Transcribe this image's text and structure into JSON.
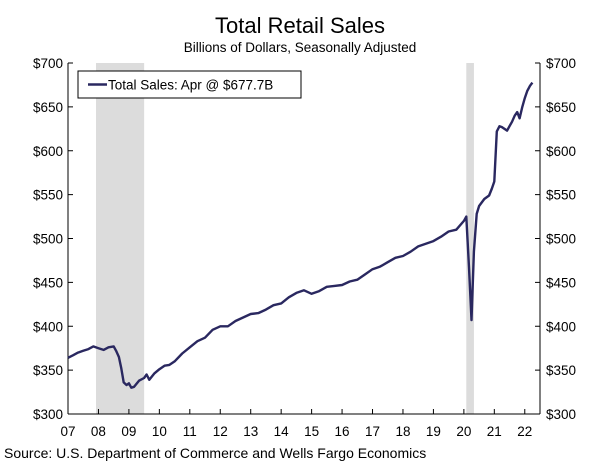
{
  "chart_data": {
    "type": "line",
    "title": "Total Retail Sales",
    "subtitle": "Billions of Dollars, Seasonally Adjusted",
    "source": "Source: U.S. Department of Commerce and Wells Fargo Economics",
    "xlabel": "",
    "ylabel": "",
    "y_ticks": [
      "$300",
      "$350",
      "$400",
      "$450",
      "$500",
      "$550",
      "$600",
      "$650",
      "$700"
    ],
    "y_tick_values": [
      300,
      350,
      400,
      450,
      500,
      550,
      600,
      650,
      700
    ],
    "ylim": [
      300,
      700
    ],
    "x_ticks": [
      "07",
      "08",
      "09",
      "10",
      "11",
      "12",
      "13",
      "14",
      "15",
      "16",
      "17",
      "18",
      "19",
      "20",
      "21",
      "22"
    ],
    "x_tick_values": [
      2007,
      2008,
      2009,
      2010,
      2011,
      2012,
      2013,
      2014,
      2015,
      2016,
      2017,
      2018,
      2019,
      2020,
      2021,
      2022
    ],
    "xlim": [
      2007,
      2022.5
    ],
    "recessions": [
      {
        "start": 2007.92,
        "end": 2009.5
      },
      {
        "start": 2020.08,
        "end": 2020.33
      }
    ],
    "legend_position": "top-left",
    "grid": false,
    "series": [
      {
        "name": "Total Sales: Apr @ $677.7B",
        "color": "#2a2860",
        "x": [
          2007.0,
          2007.17,
          2007.33,
          2007.5,
          2007.67,
          2007.83,
          2008.0,
          2008.17,
          2008.33,
          2008.5,
          2008.58,
          2008.67,
          2008.75,
          2008.83,
          2008.92,
          2009.0,
          2009.08,
          2009.17,
          2009.33,
          2009.5,
          2009.58,
          2009.67,
          2009.83,
          2010.0,
          2010.17,
          2010.33,
          2010.5,
          2010.75,
          2011.0,
          2011.25,
          2011.5,
          2011.75,
          2012.0,
          2012.25,
          2012.5,
          2012.75,
          2013.0,
          2013.25,
          2013.5,
          2013.75,
          2014.0,
          2014.25,
          2014.5,
          2014.75,
          2015.0,
          2015.25,
          2015.5,
          2015.75,
          2016.0,
          2016.25,
          2016.5,
          2016.75,
          2017.0,
          2017.25,
          2017.5,
          2017.75,
          2018.0,
          2018.25,
          2018.5,
          2018.75,
          2019.0,
          2019.25,
          2019.5,
          2019.75,
          2020.0,
          2020.08,
          2020.17,
          2020.25,
          2020.33,
          2020.42,
          2020.5,
          2020.67,
          2020.83,
          2020.92,
          2021.0,
          2021.08,
          2021.17,
          2021.25,
          2021.42,
          2021.5,
          2021.58,
          2021.67,
          2021.75,
          2021.83,
          2021.92,
          2022.0,
          2022.08,
          2022.17,
          2022.25
        ],
        "values": [
          364,
          367,
          370,
          372,
          374,
          377,
          375,
          373,
          376,
          377,
          372,
          365,
          352,
          336,
          333,
          335,
          330,
          331,
          338,
          341,
          345,
          339,
          346,
          351,
          355,
          356,
          360,
          369,
          376,
          383,
          387,
          396,
          400,
          400,
          406,
          410,
          414,
          415,
          419,
          424,
          426,
          433,
          438,
          441,
          437,
          440,
          445,
          446,
          447,
          451,
          453,
          459,
          465,
          468,
          473,
          478,
          480,
          485,
          491,
          494,
          497,
          502,
          508,
          510,
          520,
          525,
          467,
          407,
          485,
          528,
          537,
          545,
          549,
          557,
          565,
          622,
          628,
          627,
          623,
          628,
          633,
          640,
          644,
          637,
          650,
          660,
          668,
          674,
          677.7
        ]
      }
    ]
  }
}
